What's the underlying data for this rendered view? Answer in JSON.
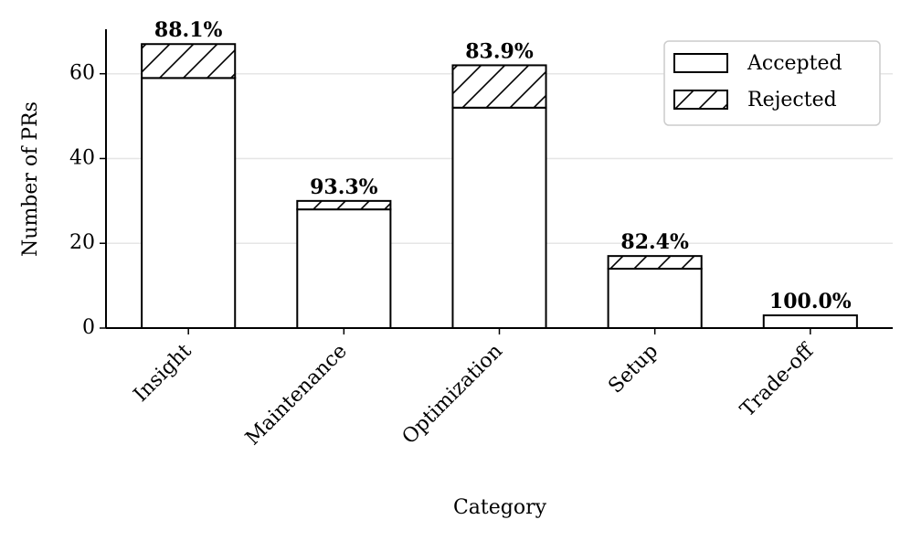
{
  "chart_data": {
    "type": "stacked_bar",
    "xlabel": "Category",
    "ylabel": "Number of PRs",
    "categories": [
      "Insight",
      "Maintenance",
      "Optimization",
      "Setup",
      "Trade-off"
    ],
    "series": [
      {
        "name": "Accepted",
        "color": "#ffffff",
        "hatch": null,
        "values": [
          59,
          28,
          52,
          14,
          3
        ]
      },
      {
        "name": "Rejected",
        "color": "#ffffff",
        "hatch": "/",
        "values": [
          8,
          2,
          10,
          3,
          0
        ]
      }
    ],
    "acceptance_rate": {
      "values": [
        88.1,
        93.3,
        83.9,
        82.4,
        100.0
      ],
      "value_labels": [
        "88.1%",
        "93.3%",
        "83.9%",
        "82.4%",
        "100.0%"
      ]
    },
    "ylim": [
      0,
      70.5
    ],
    "yticks": [
      0,
      20,
      40,
      60
    ],
    "grid": true,
    "legend": "upper right"
  }
}
